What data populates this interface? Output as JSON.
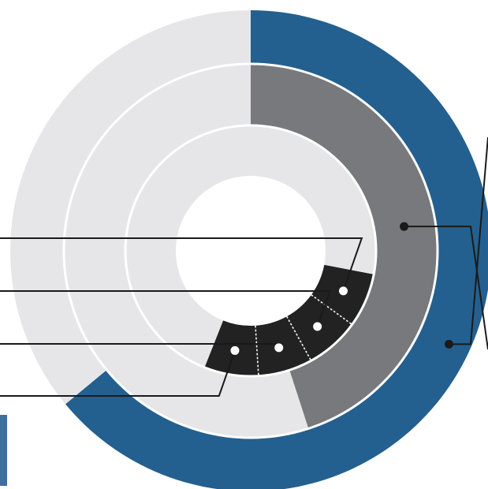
{
  "chart_data": {
    "type": "pie",
    "title": "",
    "rings": [
      {
        "name": "",
        "segments": [
          {
            "value": 64,
            "color": "#23608f",
            "callout": true
          },
          {
            "value": 36,
            "color": "#e6e6e8",
            "callout": false
          }
        ]
      },
      {
        "name": "",
        "segments": [
          {
            "value": 45,
            "color": "#78797c",
            "callout": true
          },
          {
            "value": 55,
            "color": "#e6e6e8",
            "callout": false
          }
        ]
      },
      {
        "name": "",
        "start_offset": 28,
        "segments": [
          {
            "value": 7,
            "color": "#222222",
            "callout": true
          },
          {
            "value": 7,
            "color": "#222222",
            "callout": true
          },
          {
            "value": 7,
            "color": "#222222",
            "callout": true
          },
          {
            "value": 7,
            "color": "#222222",
            "callout": true
          },
          {
            "value": 72,
            "color": "#e6e6e8",
            "callout": false
          }
        ]
      }
    ],
    "legend": "none",
    "grid": false
  },
  "accent": {
    "slab_color": "#3f6f9e",
    "divider_color": "#ffffff"
  }
}
